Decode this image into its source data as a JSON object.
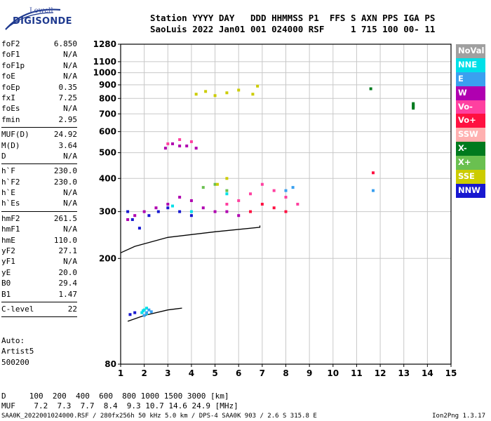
{
  "logo": {
    "line1": "Lowell",
    "line2": "DIGISONDE"
  },
  "header": {
    "line1": "Station YYYY DAY   DDD HHMMSS P1  FFS S AXN PPS IGA PS",
    "line2": "SaoLuis 2022 Jan01 001 024000 RSF     1 715 100 00- 11"
  },
  "params": {
    "group1": [
      {
        "label": "foF2",
        "value": "6.850"
      },
      {
        "label": "foF1",
        "value": "N/A"
      },
      {
        "label": "foF1p",
        "value": "N/A"
      },
      {
        "label": "foE",
        "value": "N/A"
      },
      {
        "label": "foEp",
        "value": "0.35"
      },
      {
        "label": "fxI",
        "value": "7.25"
      },
      {
        "label": "foEs",
        "value": "N/A"
      },
      {
        "label": "fmin",
        "value": "2.95"
      }
    ],
    "group2": [
      {
        "label": "MUF(D)",
        "value": "24.92"
      },
      {
        "label": "M(D)",
        "value": "3.64"
      },
      {
        "label": "D",
        "value": "N/A"
      }
    ],
    "group3": [
      {
        "label": "h`F",
        "value": "230.0"
      },
      {
        "label": "h`F2",
        "value": "230.0"
      },
      {
        "label": "h`E",
        "value": "N/A"
      },
      {
        "label": "h`Es",
        "value": "N/A"
      }
    ],
    "group4": [
      {
        "label": "hmF2",
        "value": "261.5"
      },
      {
        "label": "hmF1",
        "value": "N/A"
      },
      {
        "label": "hmE",
        "value": "110.0"
      },
      {
        "label": "yF2",
        "value": "27.1"
      },
      {
        "label": "yF1",
        "value": "N/A"
      },
      {
        "label": "yE",
        "value": "20.0"
      },
      {
        "label": "B0",
        "value": "29.4"
      },
      {
        "label": "B1",
        "value": "1.47"
      }
    ],
    "group5": [
      {
        "label": "C-level",
        "value": "22"
      }
    ]
  },
  "auto": {
    "line1": "Auto:",
    "line2": "Artist5",
    "line3": "500200"
  },
  "legend": [
    {
      "label": "NoVal",
      "color": "#a0a0a0"
    },
    {
      "label": "NNE",
      "color": "#00e0e8"
    },
    {
      "label": "E",
      "color": "#3aa0f0"
    },
    {
      "label": "W",
      "color": "#b000b0"
    },
    {
      "label": "Vo-",
      "color": "#ff40a0"
    },
    {
      "label": "Vo+",
      "color": "#ff1040"
    },
    {
      "label": "SSW",
      "color": "#ffb0b0"
    },
    {
      "label": "X-",
      "color": "#007a1e"
    },
    {
      "label": "X+",
      "color": "#6ac050"
    },
    {
      "label": "SSE",
      "color": "#cccc00"
    },
    {
      "label": "NNW",
      "color": "#1818d0"
    }
  ],
  "footer": {
    "line1": "D     100  200  400  600  800 1000 1500 3000 [km]",
    "line2": "MUF    7.2  7.3  7.7  8.4  9.3 10.7 14.6 24.9 [MHz]",
    "line3": "SAA0K_2022001024000.RSF / 280fx256h 50 kHz 5.0 km / DPS-4 SAA0K 903 / 2.6 S 315.8 E",
    "version": "Ion2Png 1.3.17"
  },
  "chart_data": {
    "type": "scatter",
    "title": "",
    "xlabel": "",
    "ylabel": "",
    "xlim": [
      1,
      15
    ],
    "ylim": [
      80,
      1280
    ],
    "y_scale": "log",
    "x_ticks": [
      1,
      2,
      3,
      4,
      5,
      6,
      7,
      8,
      9,
      10,
      11,
      12,
      13,
      14,
      15
    ],
    "y_ticks": [
      80,
      200,
      300,
      400,
      500,
      600,
      700,
      800,
      900,
      1000,
      1100,
      1280
    ],
    "grid": true,
    "legend_placement": "right",
    "series": [
      {
        "name": "NNE",
        "color": "#00e0e8",
        "points": [
          [
            1.9,
            125
          ],
          [
            2.0,
            128
          ],
          [
            2.1,
            124
          ],
          [
            2.1,
            130
          ],
          [
            1.95,
            127
          ],
          [
            3.2,
            315
          ],
          [
            4.0,
            300
          ],
          [
            5.5,
            350
          ]
        ]
      },
      {
        "name": "E",
        "color": "#3aa0f0",
        "points": [
          [
            2.0,
            122
          ],
          [
            2.1,
            125
          ],
          [
            2.2,
            128
          ],
          [
            2.3,
            126
          ],
          [
            8.0,
            360
          ],
          [
            8.3,
            370
          ],
          [
            11.7,
            360
          ]
        ]
      },
      {
        "name": "W",
        "color": "#b000b0",
        "points": [
          [
            1.3,
            280
          ],
          [
            1.6,
            290
          ],
          [
            2.0,
            300
          ],
          [
            2.5,
            310
          ],
          [
            3.0,
            320
          ],
          [
            3.5,
            340
          ],
          [
            4.0,
            330
          ],
          [
            4.5,
            310
          ],
          [
            5.0,
            300
          ],
          [
            5.5,
            300
          ],
          [
            6.0,
            290
          ],
          [
            2.9,
            520
          ],
          [
            3.2,
            540
          ],
          [
            3.5,
            530
          ],
          [
            3.8,
            530
          ],
          [
            4.2,
            520
          ]
        ]
      },
      {
        "name": "Vo-",
        "color": "#ff40a0",
        "points": [
          [
            5.5,
            320
          ],
          [
            6.0,
            330
          ],
          [
            6.5,
            350
          ],
          [
            7.0,
            380
          ],
          [
            7.5,
            360
          ],
          [
            8.0,
            340
          ],
          [
            8.5,
            320
          ],
          [
            3.0,
            540
          ],
          [
            3.5,
            560
          ],
          [
            4.0,
            550
          ]
        ]
      },
      {
        "name": "Vo+",
        "color": "#ff1040",
        "points": [
          [
            6.5,
            300
          ],
          [
            7.0,
            320
          ],
          [
            7.5,
            310
          ],
          [
            8.0,
            300
          ],
          [
            11.7,
            420
          ]
        ]
      },
      {
        "name": "X-",
        "color": "#007a1e",
        "points": [
          [
            13.4,
            735
          ],
          [
            13.4,
            745
          ],
          [
            13.4,
            755
          ],
          [
            13.4,
            765
          ],
          [
            11.6,
            870
          ]
        ]
      },
      {
        "name": "X+",
        "color": "#6ac050",
        "points": [
          [
            4.5,
            370
          ],
          [
            5.0,
            380
          ],
          [
            5.5,
            360
          ]
        ]
      },
      {
        "name": "SSE",
        "color": "#cccc00",
        "points": [
          [
            4.2,
            830
          ],
          [
            4.6,
            850
          ],
          [
            5.0,
            820
          ],
          [
            5.5,
            840
          ],
          [
            6.0,
            860
          ],
          [
            6.6,
            830
          ],
          [
            6.8,
            890
          ],
          [
            5.1,
            380
          ],
          [
            5.5,
            400
          ]
        ]
      },
      {
        "name": "NNW",
        "color": "#1818d0",
        "points": [
          [
            1.3,
            300
          ],
          [
            1.5,
            280
          ],
          [
            1.8,
            260
          ],
          [
            2.2,
            290
          ],
          [
            2.6,
            300
          ],
          [
            3.0,
            310
          ],
          [
            3.5,
            300
          ],
          [
            4.0,
            290
          ],
          [
            1.4,
            123
          ],
          [
            1.6,
            125
          ]
        ]
      }
    ],
    "trace_lines": [
      {
        "points": [
          [
            1.0,
            210
          ],
          [
            1.6,
            222
          ],
          [
            3.0,
            240
          ],
          [
            5.0,
            252
          ],
          [
            6.9,
            262
          ],
          [
            6.9,
            266
          ]
        ]
      },
      {
        "points": [
          [
            1.3,
            116
          ],
          [
            2.0,
            122
          ],
          [
            3.0,
            128
          ],
          [
            3.6,
            130
          ]
        ]
      }
    ]
  }
}
